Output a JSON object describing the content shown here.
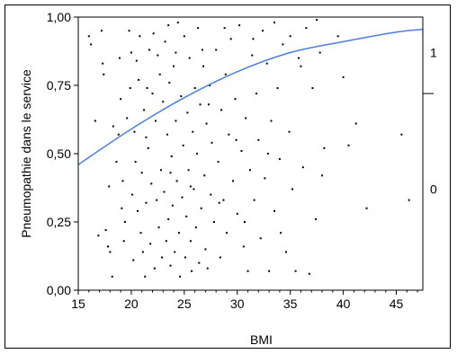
{
  "chart_data": {
    "type": "scatter",
    "xlabel": "BMI",
    "ylabel": "Pneumopathie dans le service",
    "xlim": [
      15,
      47.5
    ],
    "ylim": [
      0,
      1
    ],
    "x_ticks": [
      "15",
      "20",
      "25",
      "30",
      "35",
      "40",
      "45"
    ],
    "y_ticks": [
      "0,00",
      "0,25",
      "0,50",
      "0,75",
      "1,00"
    ],
    "right_axis_labels": [
      {
        "label": "1",
        "y": 0.87
      },
      {
        "label": "0",
        "y": 0.37
      }
    ],
    "right_axis_divider_y": 0.72,
    "logistic_curve": {
      "color": "#4a7fe0",
      "points": [
        [
          15,
          0.46
        ],
        [
          20,
          0.59
        ],
        [
          25,
          0.705
        ],
        [
          30,
          0.8
        ],
        [
          35,
          0.87
        ],
        [
          40,
          0.91
        ],
        [
          45,
          0.945
        ],
        [
          47.5,
          0.955
        ]
      ]
    },
    "point_color": "#000000",
    "points": [
      [
        16.0,
        0.93
      ],
      [
        16.2,
        0.9
      ],
      [
        16.6,
        0.62
      ],
      [
        16.9,
        0.2
      ],
      [
        17.2,
        0.95
      ],
      [
        17.3,
        0.83
      ],
      [
        17.4,
        0.79
      ],
      [
        17.6,
        0.22
      ],
      [
        17.8,
        0.16
      ],
      [
        17.9,
        0.38
      ],
      [
        18.0,
        0.14
      ],
      [
        18.2,
        0.05
      ],
      [
        18.3,
        0.6
      ],
      [
        18.8,
        0.57
      ],
      [
        18.9,
        0.85
      ],
      [
        19.0,
        0.7
      ],
      [
        19.1,
        0.3
      ],
      [
        19.2,
        0.4
      ],
      [
        19.3,
        0.18
      ],
      [
        19.4,
        0.25
      ],
      [
        19.6,
        0.63
      ],
      [
        19.8,
        0.95
      ],
      [
        19.9,
        0.74
      ],
      [
        20.0,
        0.87
      ],
      [
        20.1,
        0.35
      ],
      [
        20.2,
        0.11
      ],
      [
        20.3,
        0.58
      ],
      [
        20.4,
        0.47
      ],
      [
        20.5,
        0.84
      ],
      [
        20.6,
        0.29
      ],
      [
        20.8,
        0.93
      ],
      [
        20.9,
        0.21
      ],
      [
        21.0,
        0.43
      ],
      [
        21.1,
        0.14
      ],
      [
        21.2,
        0.66
      ],
      [
        21.3,
        0.05
      ],
      [
        21.4,
        0.32
      ],
      [
        21.5,
        0.74
      ],
      [
        21.6,
        0.52
      ],
      [
        21.7,
        0.88
      ],
      [
        21.8,
        0.17
      ],
      [
        21.9,
        0.39
      ],
      [
        22.0,
        0.72
      ],
      [
        22.2,
        0.08
      ],
      [
        22.3,
        0.62
      ],
      [
        22.4,
        0.33
      ],
      [
        22.5,
        0.86
      ],
      [
        22.6,
        0.23
      ],
      [
        22.7,
        0.79
      ],
      [
        22.8,
        0.44
      ],
      [
        22.9,
        0.12
      ],
      [
        23.0,
        0.69
      ],
      [
        23.1,
        0.36
      ],
      [
        23.2,
        0.91
      ],
      [
        23.3,
        0.18
      ],
      [
        23.4,
        0.57
      ],
      [
        23.5,
        0.26
      ],
      [
        23.6,
        0.76
      ],
      [
        23.7,
        0.09
      ],
      [
        23.8,
        0.49
      ],
      [
        23.9,
        0.31
      ],
      [
        24.0,
        0.82
      ],
      [
        24.1,
        0.14
      ],
      [
        24.2,
        0.62
      ],
      [
        24.3,
        0.4
      ],
      [
        24.4,
        0.98
      ],
      [
        24.5,
        0.21
      ],
      [
        24.6,
        0.05
      ],
      [
        24.7,
        0.71
      ],
      [
        24.8,
        0.34
      ],
      [
        24.9,
        0.53
      ],
      [
        25.0,
        0.93
      ],
      [
        25.1,
        0.12
      ],
      [
        25.2,
        0.27
      ],
      [
        25.3,
        0.65
      ],
      [
        25.4,
        0.44
      ],
      [
        25.5,
        0.85
      ],
      [
        25.6,
        0.18
      ],
      [
        25.7,
        0.07
      ],
      [
        25.8,
        0.58
      ],
      [
        25.9,
        0.37
      ],
      [
        26.0,
        0.74
      ],
      [
        26.1,
        0.23
      ],
      [
        26.2,
        0.5
      ],
      [
        26.3,
        0.96
      ],
      [
        26.4,
        0.1
      ],
      [
        26.5,
        0.68
      ],
      [
        26.6,
        0.3
      ],
      [
        26.8,
        0.82
      ],
      [
        26.9,
        0.42
      ],
      [
        27.0,
        0.15
      ],
      [
        27.1,
        0.61
      ],
      [
        27.2,
        0.08
      ],
      [
        27.4,
        0.75
      ],
      [
        27.5,
        0.35
      ],
      [
        27.6,
        0.54
      ],
      [
        27.8,
        0.25
      ],
      [
        28.0,
        0.88
      ],
      [
        28.2,
        0.47
      ],
      [
        28.4,
        0.12
      ],
      [
        28.5,
        0.66
      ],
      [
        28.7,
        0.33
      ],
      [
        28.9,
        0.79
      ],
      [
        29.0,
        0.21
      ],
      [
        29.2,
        0.57
      ],
      [
        29.4,
        0.92
      ],
      [
        29.6,
        0.4
      ],
      [
        29.8,
        0.7
      ],
      [
        30.0,
        0.28
      ],
      [
        30.2,
        0.97
      ],
      [
        30.4,
        0.51
      ],
      [
        30.6,
        0.16
      ],
      [
        30.8,
        0.63
      ],
      [
        31.0,
        0.07
      ],
      [
        31.2,
        0.44
      ],
      [
        31.4,
        0.86
      ],
      [
        31.6,
        0.33
      ],
      [
        31.8,
        0.72
      ],
      [
        32.0,
        0.55
      ],
      [
        32.2,
        0.19
      ],
      [
        32.4,
        0.95
      ],
      [
        32.6,
        0.41
      ],
      [
        32.8,
        0.83
      ],
      [
        33.0,
        0.07
      ],
      [
        33.2,
        0.62
      ],
      [
        33.5,
        0.29
      ],
      [
        33.8,
        0.74
      ],
      [
        34.0,
        0.48
      ],
      [
        34.3,
        0.9
      ],
      [
        34.6,
        0.14
      ],
      [
        34.9,
        0.58
      ],
      [
        35.2,
        0.37
      ],
      [
        35.5,
        0.07
      ],
      [
        35.8,
        0.85
      ],
      [
        36.2,
        0.45
      ],
      [
        36.5,
        0.96
      ],
      [
        36.8,
        0.06
      ],
      [
        37.1,
        0.74
      ],
      [
        37.4,
        0.26
      ],
      [
        37.8,
        0.87
      ],
      [
        38.2,
        0.52
      ],
      [
        39.5,
        0.93
      ],
      [
        40.0,
        0.78
      ],
      [
        40.5,
        0.53
      ],
      [
        41.2,
        0.61
      ],
      [
        42.2,
        0.3
      ],
      [
        45.5,
        0.57
      ],
      [
        46.2,
        0.33
      ],
      [
        22.1,
        0.94
      ],
      [
        23.5,
        0.97
      ],
      [
        26.7,
        0.88
      ],
      [
        28.8,
        0.96
      ],
      [
        31.5,
        0.92
      ],
      [
        33.5,
        0.98
      ],
      [
        35.0,
        0.93
      ],
      [
        37.5,
        0.99
      ],
      [
        20.7,
        0.77
      ],
      [
        24.2,
        0.87
      ],
      [
        27.3,
        0.68
      ],
      [
        29.9,
        0.55
      ],
      [
        32.9,
        0.5
      ],
      [
        36.0,
        0.82
      ],
      [
        38.0,
        0.42
      ],
      [
        18.6,
        0.47
      ],
      [
        21.4,
        0.56
      ],
      [
        23.7,
        0.43
      ],
      [
        25.6,
        0.38
      ],
      [
        28.3,
        0.32
      ],
      [
        30.7,
        0.25
      ],
      [
        34.1,
        0.21
      ]
    ]
  }
}
